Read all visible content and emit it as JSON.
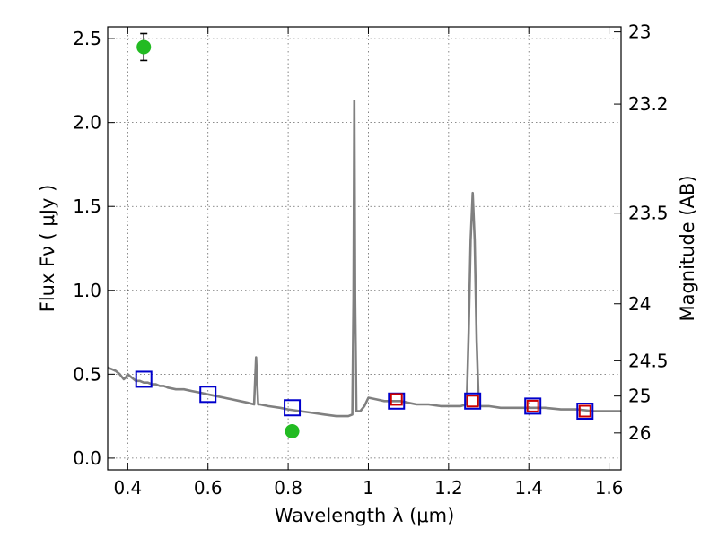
{
  "chart_data": {
    "type": "line",
    "xlabel": "Wavelength  λ (μm)",
    "ylabel": "Flux  Fν  ( μJy )",
    "ylabel_right": "Magnitude (AB)",
    "xlim": [
      0.35,
      1.63
    ],
    "ylim": [
      -0.07,
      2.57
    ],
    "x_ticks": [
      {
        "value": 0.4,
        "label": "0.4"
      },
      {
        "value": 0.6,
        "label": "0.6"
      },
      {
        "value": 0.8,
        "label": "0.8"
      },
      {
        "value": 1.0,
        "label": "1"
      },
      {
        "value": 1.2,
        "label": "1.2"
      },
      {
        "value": 1.4,
        "label": "1.4"
      },
      {
        "value": 1.6,
        "label": "1.6"
      }
    ],
    "y_ticks": [
      {
        "value": 0.0,
        "label": "0.0"
      },
      {
        "value": 0.5,
        "label": "0.5"
      },
      {
        "value": 1.0,
        "label": "1.0"
      },
      {
        "value": 1.5,
        "label": "1.5"
      },
      {
        "value": 2.0,
        "label": "2.0"
      },
      {
        "value": 2.5,
        "label": "2.5"
      }
    ],
    "right_ticks": [
      {
        "flux": 2.54,
        "label": "23"
      },
      {
        "flux": 2.11,
        "label": "23.2"
      },
      {
        "flux": 1.46,
        "label": "23.5"
      },
      {
        "flux": 0.92,
        "label": "24"
      },
      {
        "flux": 0.58,
        "label": "24.5"
      },
      {
        "flux": 0.37,
        "label": "25"
      },
      {
        "flux": 0.15,
        "label": "26"
      }
    ],
    "grid": true,
    "series": [
      {
        "kind": "spectrum",
        "color": "#808080",
        "x": [
          0.35,
          0.36,
          0.37,
          0.38,
          0.39,
          0.395,
          0.4,
          0.41,
          0.42,
          0.43,
          0.44,
          0.45,
          0.46,
          0.47,
          0.48,
          0.49,
          0.5,
          0.52,
          0.54,
          0.56,
          0.58,
          0.6,
          0.62,
          0.64,
          0.66,
          0.68,
          0.7,
          0.715,
          0.72,
          0.725,
          0.73,
          0.75,
          0.78,
          0.8,
          0.83,
          0.86,
          0.89,
          0.92,
          0.95,
          0.96,
          0.963,
          0.965,
          0.967,
          0.97,
          0.975,
          0.98,
          0.99,
          1.0,
          1.02,
          1.04,
          1.06,
          1.08,
          1.1,
          1.12,
          1.15,
          1.18,
          1.2,
          1.23,
          1.245,
          1.25,
          1.255,
          1.26,
          1.265,
          1.27,
          1.275,
          1.28,
          1.3,
          1.33,
          1.36,
          1.4,
          1.44,
          1.48,
          1.52,
          1.56,
          1.6,
          1.63
        ],
        "y": [
          0.54,
          0.53,
          0.52,
          0.5,
          0.47,
          0.48,
          0.5,
          0.48,
          0.46,
          0.46,
          0.45,
          0.45,
          0.44,
          0.44,
          0.43,
          0.43,
          0.42,
          0.41,
          0.41,
          0.4,
          0.39,
          0.38,
          0.37,
          0.36,
          0.35,
          0.34,
          0.33,
          0.32,
          0.6,
          0.32,
          0.32,
          0.31,
          0.3,
          0.29,
          0.28,
          0.27,
          0.26,
          0.25,
          0.25,
          0.26,
          0.95,
          2.13,
          0.95,
          0.28,
          0.28,
          0.28,
          0.31,
          0.36,
          0.35,
          0.34,
          0.34,
          0.34,
          0.33,
          0.32,
          0.32,
          0.31,
          0.31,
          0.31,
          0.32,
          0.75,
          1.3,
          1.58,
          1.3,
          0.7,
          0.32,
          0.31,
          0.31,
          0.3,
          0.3,
          0.3,
          0.3,
          0.29,
          0.29,
          0.28,
          0.28,
          0.28
        ]
      },
      {
        "kind": "model_photometry",
        "marker": "open-square",
        "color": "#0000cc",
        "x": [
          0.44,
          0.6,
          0.81,
          1.07,
          1.26,
          1.41,
          1.54
        ],
        "y": [
          0.47,
          0.38,
          0.3,
          0.34,
          0.34,
          0.31,
          0.28
        ]
      },
      {
        "kind": "observed_nir",
        "marker": "open-square",
        "color": "#cc0000",
        "x": [
          1.07,
          1.26,
          1.41,
          1.54
        ],
        "y": [
          0.35,
          0.34,
          0.31,
          0.28
        ]
      },
      {
        "kind": "observed_optical",
        "marker": "filled-circle",
        "color": "#22bb22",
        "x": [
          0.44,
          0.81
        ],
        "y": [
          2.45,
          0.16
        ],
        "yerr": [
          0.08,
          0.03
        ]
      }
    ]
  }
}
